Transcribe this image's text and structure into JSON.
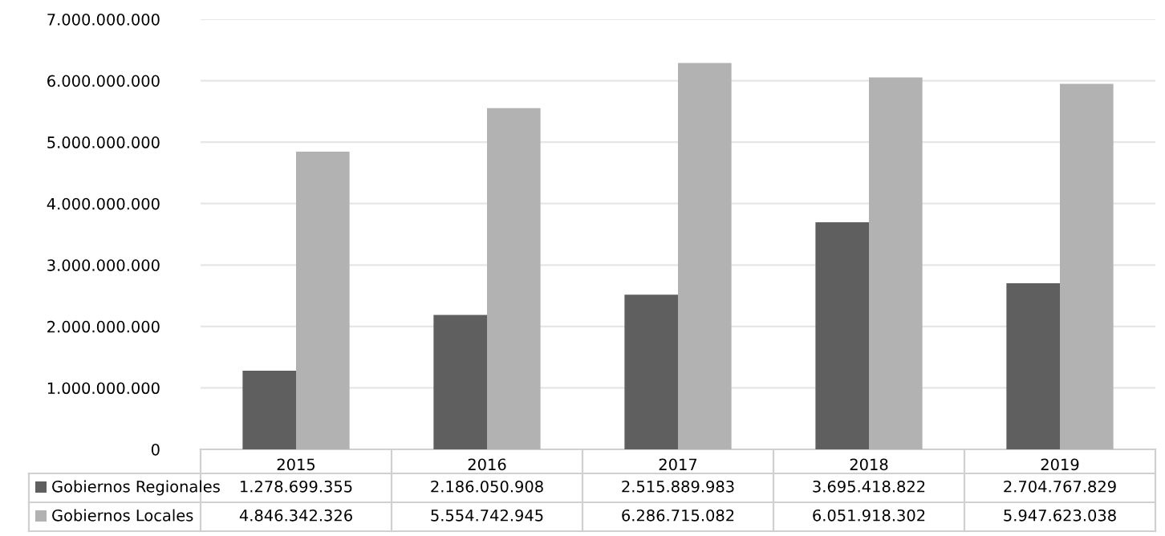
{
  "chart_data": {
    "type": "bar",
    "categories": [
      "2015",
      "2016",
      "2017",
      "2018",
      "2019"
    ],
    "series": [
      {
        "name": "Gobiernos Regionales",
        "color": "#5f5f5f",
        "values": [
          1278699355,
          2186050908,
          2515889983,
          3695418822,
          2704767829
        ],
        "value_labels": [
          "1.278.699.355",
          "2.186.050.908",
          "2.515.889.983",
          "3.695.418.822",
          "2.704.767.829"
        ]
      },
      {
        "name": "Gobiernos Locales",
        "color": "#b2b2b2",
        "values": [
          4846342326,
          5554742945,
          6286715082,
          6051918302,
          5947623038
        ],
        "value_labels": [
          "4.846.342.326",
          "5.554.742.945",
          "6.286.715.082",
          "6.051.918.302",
          "5.947.623.038"
        ]
      }
    ],
    "ylim": [
      0,
      7000000000
    ],
    "yticks": [
      {
        "value": 0,
        "label": "0"
      },
      {
        "value": 1000000000,
        "label": "1.000.000.000"
      },
      {
        "value": 2000000000,
        "label": "2.000.000.000"
      },
      {
        "value": 3000000000,
        "label": "3.000.000.000"
      },
      {
        "value": 4000000000,
        "label": "4.000.000.000"
      },
      {
        "value": 5000000000,
        "label": "5.000.000.000"
      },
      {
        "value": 6000000000,
        "label": "6.000.000.000"
      },
      {
        "value": 7000000000,
        "label": "7.000.000.000"
      }
    ],
    "grid": "y",
    "legend": "bottom"
  }
}
